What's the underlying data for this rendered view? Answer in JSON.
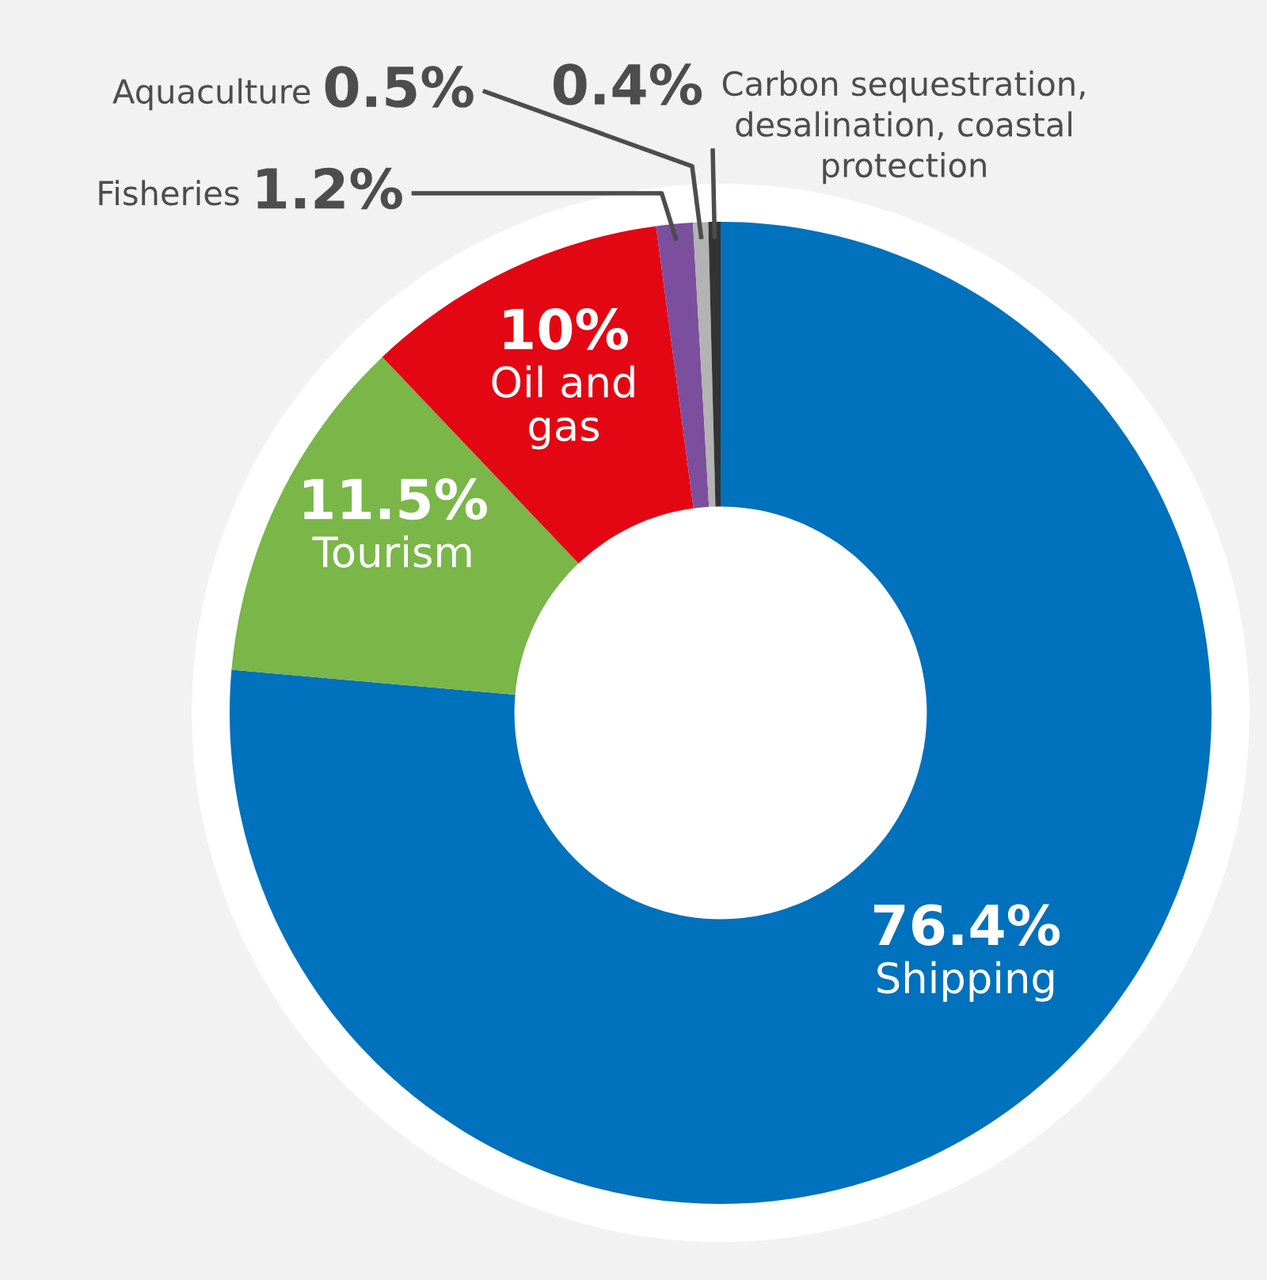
{
  "chart_data": {
    "type": "donut",
    "categories": [
      "Shipping",
      "Tourism",
      "Oil and gas",
      "Fisheries",
      "Aquaculture",
      "Carbon sequestration, desalination, coastal protection"
    ],
    "values": [
      76.4,
      11.5,
      10,
      1.2,
      0.5,
      0.4
    ],
    "colors": [
      "#0071bc",
      "#7ab648",
      "#e30613",
      "#7b4f9d",
      "#b3b3b3",
      "#333333"
    ],
    "value_labels": [
      "76.4%",
      "11.5%",
      "10%",
      "1.2%",
      "0.5%",
      "0.4%"
    ],
    "legend": false
  }
}
